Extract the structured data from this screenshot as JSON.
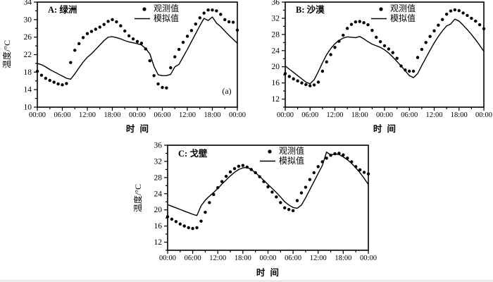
{
  "figure": {
    "xlabel": "时  间",
    "x_tick_labels": [
      "00:00",
      "06:00",
      "12:00",
      "18:00",
      "00:00",
      "06:00",
      "12:00",
      "18:00",
      "00:00"
    ],
    "legend": {
      "observed_label": "观测值",
      "simulated_label": "模拟值"
    },
    "colors": {
      "fg": "#000000",
      "bg": "#ffffff"
    }
  },
  "chart_data": [
    {
      "type": "line+scatter",
      "title": "A: 绿洲",
      "annotation": "(a)",
      "ylabel": "温度/°C",
      "xlabel": "时  间",
      "ylim": [
        10,
        34
      ],
      "yticks": [
        34,
        30,
        26,
        22,
        18,
        14,
        10
      ],
      "x_hours": {
        "start": 0,
        "end": 48,
        "major_step": 6,
        "minor_step": 3
      },
      "x_tick_labels": [
        "00:00",
        "06:00",
        "12:00",
        "18:00",
        "00:00",
        "06:00",
        "12:00",
        "18:00",
        "00:00"
      ],
      "series": [
        {
          "name": "观测值",
          "style": "scatter",
          "values": [
            18.2,
            17.3,
            16.6,
            16.1,
            15.7,
            15.3,
            15.1,
            15.4,
            20.2,
            23.0,
            24.5,
            25.9,
            26.8,
            27.3,
            27.8,
            28.3,
            28.9,
            29.6,
            30.0,
            29.5,
            28.6,
            27.4,
            26.3,
            25.6,
            25.0,
            24.6,
            23.3,
            20.6,
            17.2,
            15.3,
            14.5,
            14.4,
            19.0,
            21.5,
            23.2,
            24.8,
            26.2,
            27.5,
            29.0,
            30.4,
            31.5,
            32.2,
            32.2,
            32.0,
            31.2,
            30.0,
            29.5,
            29.4,
            27.6
          ]
        },
        {
          "name": "模拟值",
          "style": "line",
          "values": [
            20.0,
            19.7,
            19.2,
            18.6,
            18.1,
            17.6,
            17.1,
            16.6,
            16.4,
            17.6,
            19.0,
            20.3,
            21.4,
            22.2,
            23.2,
            24.2,
            25.2,
            26.0,
            26.1,
            25.9,
            25.6,
            25.2,
            24.9,
            24.7,
            24.5,
            24.2,
            23.4,
            22.2,
            19.3,
            17.4,
            17.2,
            17.2,
            17.5,
            19.2,
            19.8,
            21.5,
            23.2,
            25.0,
            26.8,
            28.6,
            30.3,
            29.8,
            30.6,
            29.2,
            28.4,
            27.4,
            26.4,
            25.5,
            24.6
          ]
        }
      ]
    },
    {
      "type": "line+scatter",
      "title": "B: 沙漠",
      "annotation": "",
      "ylabel": "",
      "xlabel": "时  间",
      "ylim": [
        10,
        36
      ],
      "yticks": [
        36,
        32,
        28,
        24,
        20,
        16,
        12
      ],
      "x_hours": {
        "start": 0,
        "end": 48,
        "major_step": 6,
        "minor_step": 3
      },
      "x_tick_labels": [
        "00:00",
        "06:00",
        "12:00",
        "18:00",
        "00:00",
        "06:00",
        "12:00",
        "18:00",
        "00:00"
      ],
      "series": [
        {
          "name": "观测值",
          "style": "scatter",
          "values": [
            18.3,
            17.6,
            17.0,
            16.5,
            16.0,
            15.6,
            15.3,
            15.5,
            16.2,
            18.9,
            21.2,
            23.0,
            24.8,
            26.3,
            27.8,
            29.5,
            30.5,
            31.1,
            31.2,
            30.9,
            30.4,
            29.0,
            27.3,
            26.2,
            25.2,
            24.4,
            23.5,
            22.1,
            20.2,
            19.2,
            18.9,
            18.9,
            22.3,
            24.3,
            26.0,
            27.5,
            28.9,
            30.3,
            31.7,
            33.0,
            33.8,
            34.1,
            33.9,
            33.3,
            32.7,
            32.0,
            31.3,
            30.4,
            29.4
          ]
        },
        {
          "name": "模拟值",
          "style": "line",
          "values": [
            20.2,
            19.4,
            18.6,
            17.8,
            17.0,
            16.2,
            15.8,
            16.8,
            18.8,
            21.0,
            23.0,
            24.5,
            25.7,
            26.5,
            27.1,
            27.4,
            27.3,
            27.2,
            27.5,
            26.9,
            26.2,
            25.6,
            25.2,
            24.8,
            24.2,
            23.4,
            22.4,
            21.3,
            20.2,
            19.0,
            17.8,
            17.3,
            18.3,
            20.3,
            22.2,
            24.1,
            25.9,
            27.5,
            28.9,
            30.1,
            30.6,
            31.8,
            31.3,
            30.3,
            29.2,
            28.0,
            26.7,
            25.3,
            23.8
          ]
        }
      ]
    },
    {
      "type": "line+scatter",
      "title": "C: 戈壁",
      "annotation": "",
      "ylabel": "温度/°C",
      "xlabel": "时  间",
      "ylim": [
        10,
        36
      ],
      "yticks": [
        36,
        32,
        28,
        24,
        20,
        16,
        12
      ],
      "x_hours": {
        "start": 0,
        "end": 48,
        "major_step": 6,
        "minor_step": 3
      },
      "x_tick_labels": [
        "00:00",
        "06:00",
        "12:00",
        "18:00",
        "00:00",
        "06:00",
        "12:00",
        "18:00",
        "00:00"
      ],
      "series": [
        {
          "name": "观测值",
          "style": "scatter",
          "values": [
            18.3,
            17.7,
            17.1,
            16.5,
            16.0,
            15.6,
            15.4,
            15.6,
            17.2,
            19.4,
            21.8,
            23.8,
            25.5,
            27.0,
            28.3,
            29.4,
            30.2,
            30.8,
            31.0,
            30.6,
            30.0,
            29.2,
            28.2,
            27.0,
            25.7,
            24.4,
            23.2,
            21.8,
            20.5,
            20.1,
            19.8,
            22.3,
            24.2,
            25.6,
            27.5,
            29.2,
            30.7,
            31.9,
            32.8,
            33.5,
            33.9,
            34.0,
            33.6,
            32.8,
            31.9,
            30.7,
            29.9,
            29.3,
            28.9
          ]
        },
        {
          "name": "模拟值",
          "style": "line",
          "values": [
            21.3,
            20.9,
            20.5,
            20.1,
            19.7,
            19.3,
            18.9,
            18.6,
            21.0,
            22.4,
            23.4,
            24.3,
            25.3,
            26.4,
            27.4,
            28.4,
            29.3,
            30.0,
            30.4,
            30.5,
            30.0,
            29.2,
            28.3,
            27.3,
            26.3,
            25.3,
            24.3,
            23.2,
            22.0,
            21.2,
            20.6,
            20.4,
            21.2,
            23.0,
            25.0,
            27.0,
            29.0,
            31.0,
            34.3,
            33.6,
            33.8,
            33.7,
            33.1,
            32.4,
            31.5,
            30.4,
            29.2,
            27.8,
            26.3
          ]
        }
      ]
    }
  ]
}
